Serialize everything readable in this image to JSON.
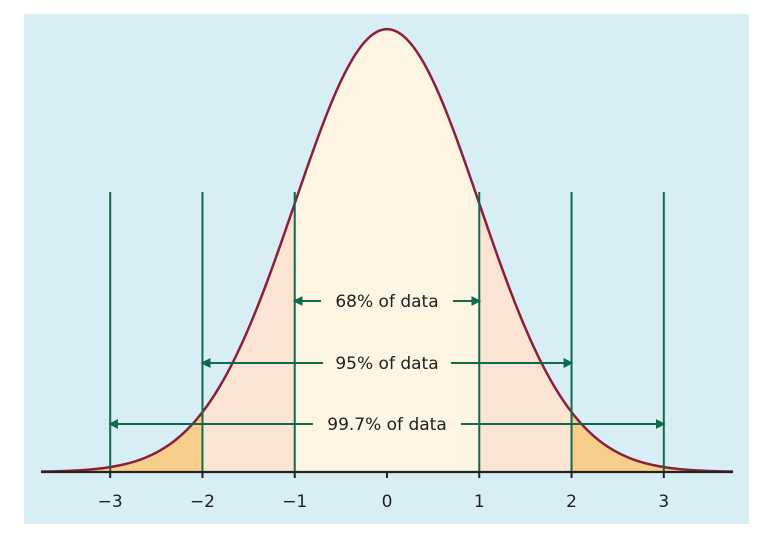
{
  "colors": {
    "panel_background": "#d8eef5",
    "center_band_fill": "#fdf4e1",
    "middle_band_fill": "#fbe4d3",
    "outer_band_fill": "#f8cf8a",
    "curve": "#8a1f3c",
    "guide_lines": "#0e6a4b",
    "axis": "#222222"
  },
  "chart_data": {
    "type": "area",
    "title": "",
    "xlabel": "",
    "ylabel": "",
    "xlim": [
      -3.75,
      3.75
    ],
    "ylim": [
      0,
      0.4
    ],
    "x_ticks": [
      -3,
      -2,
      -1,
      0,
      1,
      2,
      3
    ],
    "x_tick_labels": [
      "−3",
      "−2",
      "−1",
      "0",
      "1",
      "2",
      "3"
    ],
    "guide_lines": [
      -3,
      -2,
      -1,
      1,
      2,
      3
    ],
    "bands": [
      {
        "range": [
          -1,
          1
        ],
        "label": "68% of data"
      },
      {
        "range": [
          -2,
          2
        ],
        "label": "95% of data"
      },
      {
        "range": [
          -3,
          3
        ],
        "label": "99.7% of data"
      }
    ]
  }
}
